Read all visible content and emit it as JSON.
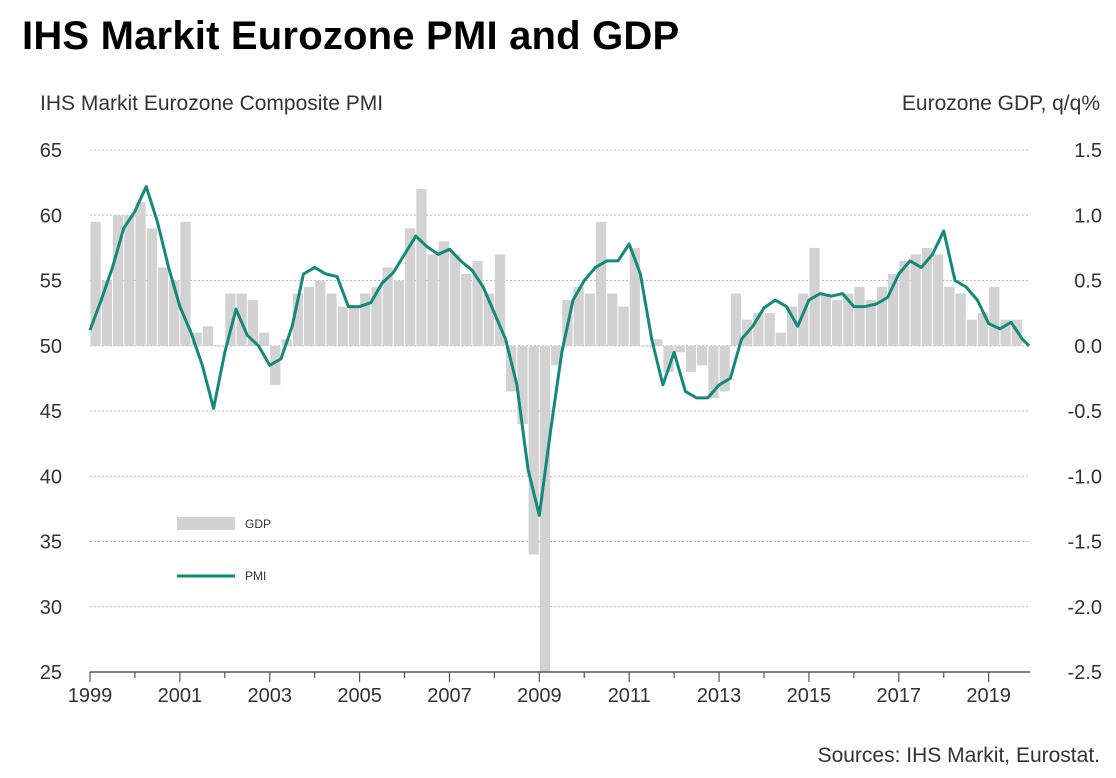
{
  "title": "IHS Markit Eurozone PMI and GDP",
  "left_axis_label": "IHS Markit Eurozone  Composite PMI",
  "right_axis_label": "Eurozone  GDP, q/q%",
  "source": "Sources: IHS Markit, Eurostat.",
  "colors": {
    "pmi": "#15887c",
    "gdp": "#d2d2d2",
    "grid": "#bbbbbb"
  },
  "chart_data": {
    "type": "bar+line",
    "title": "IHS Markit Eurozone PMI and GDP",
    "x_range": [
      1999,
      2019.92
    ],
    "x_ticks": [
      "1999",
      "2001",
      "2003",
      "2005",
      "2007",
      "2009",
      "2011",
      "2013",
      "2015",
      "2017",
      "2019"
    ],
    "y_left": {
      "label": "IHS Markit Eurozone  Composite PMI",
      "range": [
        25,
        65
      ],
      "ticks": [
        "25",
        "30",
        "35",
        "40",
        "45",
        "50",
        "55",
        "60",
        "65"
      ]
    },
    "y_right": {
      "label": "Eurozone  GDP, q/q%",
      "range": [
        -2.5,
        1.5
      ],
      "ticks": [
        "-2.5",
        "-2.0",
        "-1.5",
        "-1.0",
        "-0.5",
        "0.0",
        "0.5",
        "1.0",
        "1.5"
      ]
    },
    "legend": [
      {
        "name": "GDP",
        "style": "bar"
      },
      {
        "name": "PMI",
        "style": "line"
      }
    ],
    "series": [
      {
        "name": "GDP",
        "type": "bar",
        "axis": "right",
        "x": [
          1999.0,
          1999.25,
          1999.5,
          1999.75,
          2000.0,
          2000.25,
          2000.5,
          2000.75,
          2001.0,
          2001.25,
          2001.5,
          2001.75,
          2002.0,
          2002.25,
          2002.5,
          2002.75,
          2003.0,
          2003.25,
          2003.5,
          2003.75,
          2004.0,
          2004.25,
          2004.5,
          2004.75,
          2005.0,
          2005.25,
          2005.5,
          2005.75,
          2006.0,
          2006.25,
          2006.5,
          2006.75,
          2007.0,
          2007.25,
          2007.5,
          2007.75,
          2008.0,
          2008.25,
          2008.5,
          2008.75,
          2009.0,
          2009.25,
          2009.5,
          2009.75,
          2010.0,
          2010.25,
          2010.5,
          2010.75,
          2011.0,
          2011.25,
          2011.5,
          2011.75,
          2012.0,
          2012.25,
          2012.5,
          2012.75,
          2013.0,
          2013.25,
          2013.5,
          2013.75,
          2014.0,
          2014.25,
          2014.5,
          2014.75,
          2015.0,
          2015.25,
          2015.5,
          2015.75,
          2016.0,
          2016.25,
          2016.5,
          2016.75,
          2017.0,
          2017.25,
          2017.5,
          2017.75,
          2018.0,
          2018.25,
          2018.5,
          2018.75,
          2019.0,
          2019.25,
          2019.5
        ],
        "values": [
          0.95,
          0.5,
          1.0,
          1.0,
          1.1,
          0.9,
          0.6,
          0.5,
          0.95,
          0.1,
          0.15,
          0.0,
          0.4,
          0.4,
          0.35,
          0.1,
          -0.3,
          0.05,
          0.4,
          0.45,
          0.5,
          0.4,
          0.3,
          0.3,
          0.4,
          0.45,
          0.6,
          0.5,
          0.9,
          1.2,
          0.7,
          0.8,
          0.7,
          0.55,
          0.65,
          0.4,
          0.7,
          -0.35,
          -0.6,
          -1.6,
          -2.5,
          -0.15,
          0.35,
          0.45,
          0.4,
          0.95,
          0.4,
          0.3,
          0.75,
          0.0,
          0.05,
          -0.2,
          -0.05,
          -0.2,
          -0.15,
          -0.4,
          -0.35,
          0.4,
          0.2,
          0.25,
          0.25,
          0.1,
          0.3,
          0.4,
          0.75,
          0.4,
          0.35,
          0.4,
          0.45,
          0.35,
          0.45,
          0.55,
          0.65,
          0.7,
          0.75,
          0.7,
          0.45,
          0.4,
          0.2,
          0.25,
          0.45,
          0.2,
          0.2
        ]
      },
      {
        "name": "PMI",
        "type": "line",
        "axis": "left",
        "x": [
          1999.0,
          1999.25,
          1999.5,
          1999.75,
          2000.0,
          2000.25,
          2000.5,
          2000.75,
          2001.0,
          2001.25,
          2001.5,
          2001.75,
          2002.0,
          2002.25,
          2002.5,
          2002.75,
          2003.0,
          2003.25,
          2003.5,
          2003.75,
          2004.0,
          2004.25,
          2004.5,
          2004.75,
          2005.0,
          2005.25,
          2005.5,
          2005.75,
          2006.0,
          2006.25,
          2006.5,
          2006.75,
          2007.0,
          2007.25,
          2007.5,
          2007.75,
          2008.0,
          2008.25,
          2008.5,
          2008.75,
          2009.0,
          2009.25,
          2009.5,
          2009.75,
          2010.0,
          2010.25,
          2010.5,
          2010.75,
          2011.0,
          2011.25,
          2011.5,
          2011.75,
          2012.0,
          2012.25,
          2012.5,
          2012.75,
          2013.0,
          2013.25,
          2013.5,
          2013.75,
          2014.0,
          2014.25,
          2014.5,
          2014.75,
          2015.0,
          2015.25,
          2015.5,
          2015.75,
          2016.0,
          2016.25,
          2016.5,
          2016.75,
          2017.0,
          2017.25,
          2017.5,
          2017.75,
          2018.0,
          2018.25,
          2018.5,
          2018.75,
          2019.0,
          2019.25,
          2019.5,
          2019.75,
          2019.9
        ],
        "values": [
          51.2,
          53.5,
          56.0,
          59.0,
          60.3,
          62.2,
          59.5,
          56.0,
          53.0,
          51.0,
          48.5,
          45.2,
          49.5,
          52.8,
          50.8,
          50.0,
          48.5,
          49.0,
          51.5,
          55.5,
          56.0,
          55.5,
          55.3,
          53.0,
          53.0,
          53.3,
          54.8,
          55.6,
          57.0,
          58.4,
          57.6,
          57.0,
          57.4,
          56.5,
          55.8,
          54.5,
          52.5,
          50.5,
          47.0,
          40.5,
          37.0,
          43.5,
          49.5,
          53.5,
          55.0,
          56.0,
          56.5,
          56.5,
          57.8,
          55.5,
          50.5,
          47.0,
          49.5,
          46.5,
          46.0,
          46.0,
          47.0,
          47.5,
          50.5,
          51.5,
          52.9,
          53.5,
          53.0,
          51.5,
          53.5,
          54.0,
          53.8,
          54.0,
          53.0,
          53.0,
          53.2,
          53.7,
          55.5,
          56.5,
          56.0,
          57.0,
          58.8,
          55.0,
          54.5,
          53.5,
          51.7,
          51.3,
          51.8,
          50.5,
          50.0
        ]
      }
    ]
  }
}
